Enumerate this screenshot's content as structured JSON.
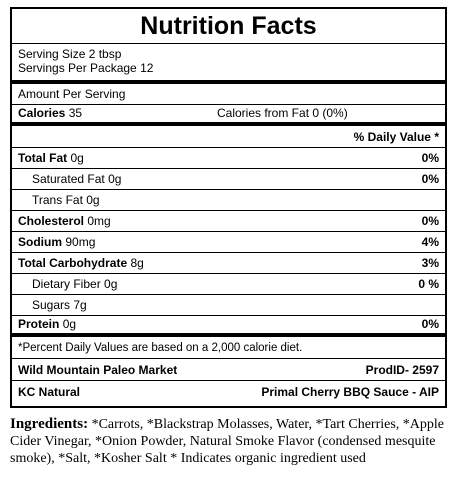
{
  "label": {
    "title": "Nutrition Facts",
    "serving_size": "Serving Size 2 tbsp",
    "servings_per_package": "Servings Per Package 12",
    "amount_per_serving": "Amount Per Serving",
    "calories_label": "Calories",
    "calories_value": "35",
    "calories_from_fat": "Calories from Fat 0 (0%)",
    "dv_header": "% Daily Value *",
    "nutrients": [
      {
        "name": "Total Fat",
        "amount": "0g",
        "dv": "0%"
      },
      {
        "name": "Saturated Fat",
        "amount": "0g",
        "dv": "0%"
      },
      {
        "name": "Trans Fat",
        "amount": "0g",
        "dv": ""
      },
      {
        "name": "Cholesterol",
        "amount": "0mg",
        "dv": "0%"
      },
      {
        "name": "Sodium",
        "amount": "90mg",
        "dv": "4%"
      },
      {
        "name": "Total Carbohydrate",
        "amount": "8g",
        "dv": "3%"
      },
      {
        "name": "Dietary Fiber",
        "amount": "0g",
        "dv": "0 %"
      },
      {
        "name": "Sugars",
        "amount": "7g",
        "dv": ""
      },
      {
        "name": "Protein",
        "amount": "0g",
        "dv": "0%"
      }
    ],
    "footnote": "*Percent Daily Values are based on a 2,000 calorie diet.",
    "brand_left": "Wild Mountain Paleo Market",
    "product_id": "ProdID- 2597",
    "brand_left2": "KC Natural",
    "product_name": "Primal Cherry BBQ Sauce - AIP"
  },
  "ingredients": {
    "title": "Ingredients:",
    "text": "*Carrots, *Blackstrap Molasses, Water, *Tart Cherries, *Apple Cider Vinegar, *Onion Powder, Natural Smoke Flavor (condensed mesquite smoke), *Salt, *Kosher Salt * Indicates organic ingredient used"
  }
}
